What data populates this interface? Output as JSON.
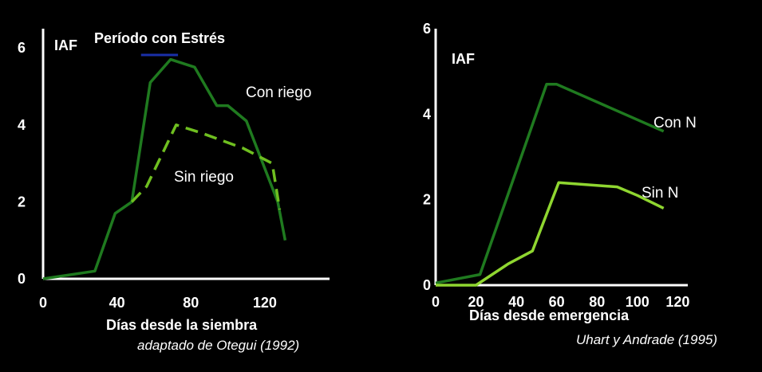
{
  "chart_data": [
    {
      "type": "line",
      "ylabel": "IAF",
      "xlabel": "Días desde la siembra",
      "source": "adaptado de Otegui (1992)",
      "annotation": "Período con Estrés",
      "stress_period": [
        53,
        73
      ],
      "stress_color": "#1a2fa8",
      "xlim": [
        0,
        155
      ],
      "ylim": [
        0,
        6.5
      ],
      "x_ticks": [
        0,
        40,
        80,
        120
      ],
      "y_ticks": [
        0,
        2,
        4,
        6
      ],
      "series": [
        {
          "name": "Con riego",
          "color": "#1f7a1f",
          "dash": false,
          "x": [
            0,
            28,
            39,
            48,
            58,
            69,
            82,
            94,
            100,
            110,
            127,
            131
          ],
          "y": [
            0,
            0.2,
            1.7,
            2.0,
            5.1,
            5.7,
            5.5,
            4.5,
            4.5,
            4.1,
            2.0,
            1.0
          ]
        },
        {
          "name": "Sin riego",
          "color": "#6fbf20",
          "dash": true,
          "x": [
            48,
            56,
            72,
            85,
            108,
            124,
            128
          ],
          "y": [
            2.0,
            2.4,
            4.0,
            3.8,
            3.4,
            3.0,
            1.8
          ]
        }
      ]
    },
    {
      "type": "line",
      "ylabel": "IAF",
      "xlabel": "Días desde emergencia",
      "source": "Uhart y Andrade (1995)",
      "xlim": [
        0,
        125
      ],
      "ylim": [
        0,
        6
      ],
      "x_ticks": [
        0,
        20,
        40,
        60,
        80,
        100,
        120
      ],
      "y_ticks": [
        0,
        2,
        4,
        6
      ],
      "series": [
        {
          "name": "Con N",
          "color": "#1f7a1f",
          "dash": false,
          "x": [
            0,
            22,
            55,
            60,
            113
          ],
          "y": [
            0.05,
            0.25,
            4.7,
            4.7,
            3.6
          ]
        },
        {
          "name": "Sin N",
          "color": "#8fd630",
          "dash": false,
          "x": [
            0,
            20,
            36,
            48,
            61,
            90,
            100,
            113
          ],
          "y": [
            0,
            0,
            0.5,
            0.8,
            2.4,
            2.3,
            2.1,
            1.8
          ]
        }
      ]
    }
  ]
}
